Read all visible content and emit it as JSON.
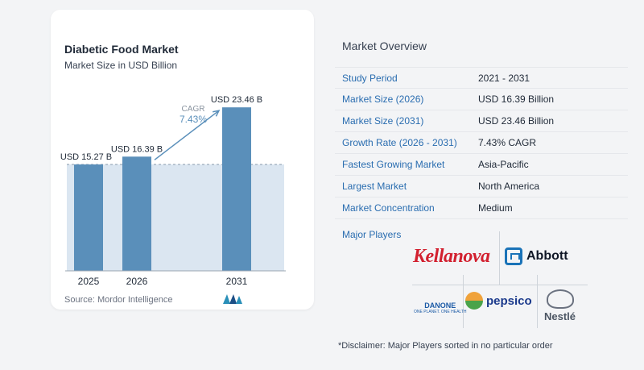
{
  "chart_data": {
    "type": "bar",
    "title": "Diabetic Food Market",
    "subtitle": "Market Size in USD Billion",
    "categories": [
      "2025",
      "2026",
      "2031"
    ],
    "values": [
      15.27,
      16.39,
      23.46
    ],
    "data_labels": [
      "USD 15.27 B",
      "USD 16.39 B",
      "USD 23.46 B"
    ],
    "annotation": {
      "label": "CAGR",
      "value": "7.43%"
    },
    "xlabel": "",
    "ylabel": "",
    "ylim": [
      0,
      25
    ],
    "grid": false,
    "colors": {
      "bar": "#5a8fba",
      "band": "#dbe6f1",
      "axis": "#9aa5b1",
      "arrow": "#5a8fba"
    }
  },
  "source": "Source: Mordor Intelligence",
  "overview": {
    "title": "Market Overview",
    "rows": [
      {
        "label": "Study Period",
        "value": "2021 - 2031"
      },
      {
        "label": "Market Size (2026)",
        "value": "USD 16.39 Billion"
      },
      {
        "label": "Market Size (2031)",
        "value": "USD 23.46 Billion"
      },
      {
        "label": "Growth Rate (2026 - 2031)",
        "value": "7.43% CAGR"
      },
      {
        "label": "Fastest Growing Market",
        "value": "Asia-Pacific"
      },
      {
        "label": "Largest Market",
        "value": "North America"
      },
      {
        "label": "Market Concentration",
        "value": "Medium"
      }
    ]
  },
  "players": {
    "title": "Major Players",
    "kellanova": "Kellanova",
    "abbott": "Abbott",
    "danone": "DANONE",
    "danone_tag": "ONE PLANET. ONE HEALTH",
    "pepsico": "pepsico",
    "nestle": "Nestlé"
  },
  "disclaimer": "*Disclaimer: Major Players sorted in no particular order"
}
